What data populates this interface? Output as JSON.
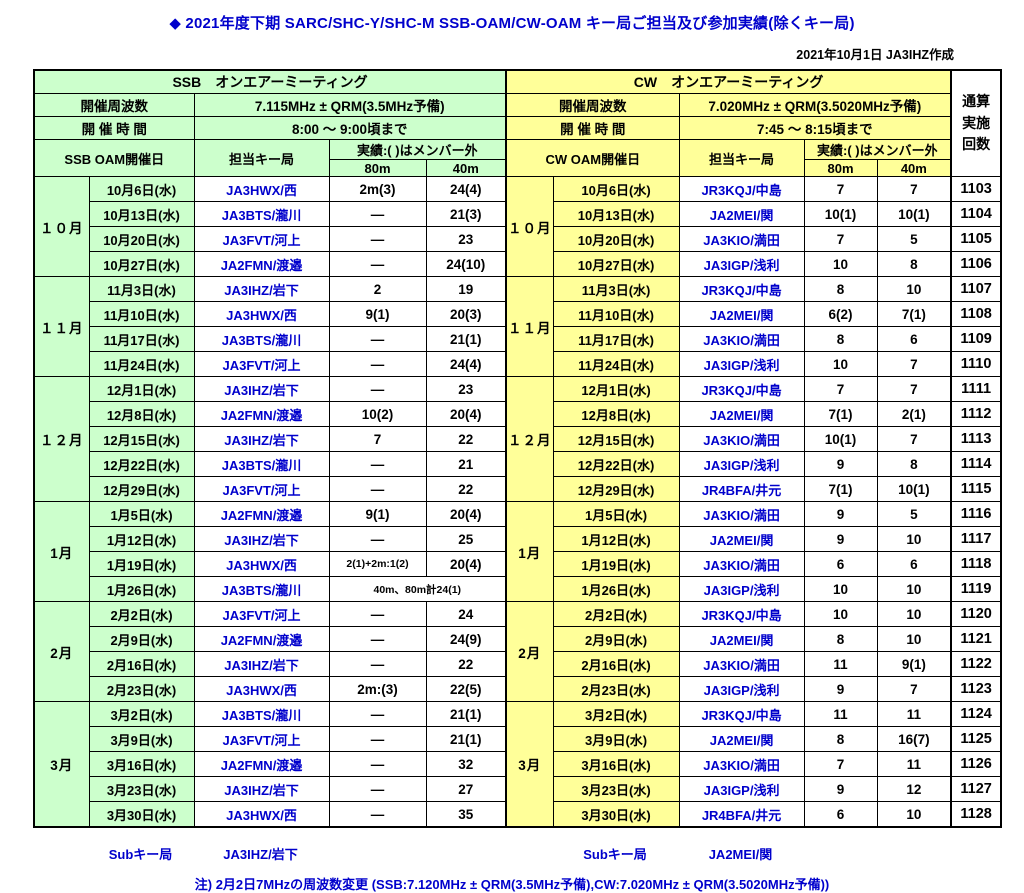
{
  "title": "◆ 2021年度下期 SARC/SHC-Y/SHC-M SSB-OAM/CW-OAM キー局ご担当及び参加実績(除くキー局)",
  "created": "2021年10月1日 JA3IHZ作成",
  "colors": {
    "ssb_bg": "#ccffcc",
    "cw_bg": "#ffff99",
    "accent_blue": "#0000cc"
  },
  "total_col": "通算\n実施\n回数",
  "ssb": {
    "section_title": "SSB　オンエアーミーティング",
    "freq_label": "開催周波数",
    "freq_value": "7.115MHz ± QRM(3.5MHz予備)",
    "time_label": "開 催 時 間",
    "time_value": "8:00 ～ 9:00頃まで",
    "date_col": "SSB OAM開催日",
    "key_col": "担当キー局",
    "result_col": "実績:( )はメンバー外",
    "band_80": "80m",
    "band_40": "40m"
  },
  "cw": {
    "section_title": "CW　オンエアーミーティング",
    "freq_label": "開催周波数",
    "freq_value": "7.020MHz ± QRM(3.5020MHz予備)",
    "time_label": "開 催 時 間",
    "time_value": "7:45 ～ 8:15頃まで",
    "date_col": "CW OAM開催日",
    "key_col": "担当キー局",
    "result_col": "実績:( )はメンバー外",
    "band_80": "80m",
    "band_40": "40m"
  },
  "months": [
    {
      "label": "１０月",
      "span": 4
    },
    {
      "label": "１１月",
      "span": 4
    },
    {
      "label": "１２月",
      "span": 5
    },
    {
      "label": "1月",
      "span": 4
    },
    {
      "label": "2月",
      "span": 4
    },
    {
      "label": "3月",
      "span": 5
    }
  ],
  "rows": [
    {
      "ssb_date": "10月6日(水)",
      "ssb_key": "JA3HWX/西",
      "ssb_80": "2m(3)",
      "ssb_40": "24(4)",
      "cw_date": "10月6日(水)",
      "cw_key": "JR3KQJ/中島",
      "cw_80": "7",
      "cw_40": "7",
      "total": "1103"
    },
    {
      "ssb_date": "10月13日(水)",
      "ssb_key": "JA3BTS/瀧川",
      "ssb_80": "―",
      "ssb_40": "21(3)",
      "cw_date": "10月13日(水)",
      "cw_key": "JA2MEI/関",
      "cw_80": "10(1)",
      "cw_40": "10(1)",
      "total": "1104"
    },
    {
      "ssb_date": "10月20日(水)",
      "ssb_key": "JA3FVT/河上",
      "ssb_80": "―",
      "ssb_40": "23",
      "cw_date": "10月20日(水)",
      "cw_key": "JA3KIO/満田",
      "cw_80": "7",
      "cw_40": "5",
      "total": "1105"
    },
    {
      "ssb_date": "10月27日(水)",
      "ssb_key": "JA2FMN/渡邉",
      "ssb_80": "―",
      "ssb_40": "24(10)",
      "cw_date": "10月27日(水)",
      "cw_key": "JA3IGP/浅利",
      "cw_80": "10",
      "cw_40": "8",
      "total": "1106"
    },
    {
      "ssb_date": "11月3日(水)",
      "ssb_key": "JA3IHZ/岩下",
      "ssb_80": "2",
      "ssb_40": "19",
      "cw_date": "11月3日(水)",
      "cw_key": "JR3KQJ/中島",
      "cw_80": "8",
      "cw_40": "10",
      "total": "1107"
    },
    {
      "ssb_date": "11月10日(水)",
      "ssb_key": "JA3HWX/西",
      "ssb_80": "9(1)",
      "ssb_40": "20(3)",
      "cw_date": "11月10日(水)",
      "cw_key": "JA2MEI/関",
      "cw_80": "6(2)",
      "cw_40": "7(1)",
      "total": "1108"
    },
    {
      "ssb_date": "11月17日(水)",
      "ssb_key": "JA3BTS/瀧川",
      "ssb_80": "―",
      "ssb_40": "21(1)",
      "cw_date": "11月17日(水)",
      "cw_key": "JA3KIO/満田",
      "cw_80": "8",
      "cw_40": "6",
      "total": "1109"
    },
    {
      "ssb_date": "11月24日(水)",
      "ssb_key": "JA3FVT/河上",
      "ssb_80": "―",
      "ssb_40": "24(4)",
      "cw_date": "11月24日(水)",
      "cw_key": "JA3IGP/浅利",
      "cw_80": "10",
      "cw_40": "7",
      "total": "1110"
    },
    {
      "ssb_date": "12月1日(水)",
      "ssb_key": "JA3IHZ/岩下",
      "ssb_80": "―",
      "ssb_40": "23",
      "cw_date": "12月1日(水)",
      "cw_key": "JR3KQJ/中島",
      "cw_80": "7",
      "cw_40": "7",
      "total": "1111"
    },
    {
      "ssb_date": "12月8日(水)",
      "ssb_key": "JA2FMN/渡邉",
      "ssb_80": "10(2)",
      "ssb_40": "20(4)",
      "cw_date": "12月8日(水)",
      "cw_key": "JA2MEI/関",
      "cw_80": "7(1)",
      "cw_40": "2(1)",
      "total": "1112"
    },
    {
      "ssb_date": "12月15日(水)",
      "ssb_key": "JA3IHZ/岩下",
      "ssb_80": "7",
      "ssb_40": "22",
      "cw_date": "12月15日(水)",
      "cw_key": "JA3KIO/満田",
      "cw_80": "10(1)",
      "cw_40": "7",
      "total": "1113"
    },
    {
      "ssb_date": "12月22日(水)",
      "ssb_key": "JA3BTS/瀧川",
      "ssb_80": "―",
      "ssb_40": "21",
      "cw_date": "12月22日(水)",
      "cw_key": "JA3IGP/浅利",
      "cw_80": "9",
      "cw_40": "8",
      "total": "1114"
    },
    {
      "ssb_date": "12月29日(水)",
      "ssb_key": "JA3FVT/河上",
      "ssb_80": "―",
      "ssb_40": "22",
      "cw_date": "12月29日(水)",
      "cw_key": "JR4BFA/井元",
      "cw_80": "7(1)",
      "cw_40": "10(1)",
      "total": "1115"
    },
    {
      "ssb_date": "1月5日(水)",
      "ssb_key": "JA2FMN/渡邉",
      "ssb_80": "9(1)",
      "ssb_40": "20(4)",
      "cw_date": "1月5日(水)",
      "cw_key": "JA3KIO/満田",
      "cw_80": "9",
      "cw_40": "5",
      "total": "1116"
    },
    {
      "ssb_date": "1月12日(水)",
      "ssb_key": "JA3IHZ/岩下",
      "ssb_80": "―",
      "ssb_40": "25",
      "cw_date": "1月12日(水)",
      "cw_key": "JA2MEI/関",
      "cw_80": "9",
      "cw_40": "10",
      "total": "1117"
    },
    {
      "ssb_date": "1月19日(水)",
      "ssb_key": "JA3HWX/西",
      "ssb_80": "2(1)+2m:1(2)",
      "ssb_40": "20(4)",
      "cw_date": "1月19日(水)",
      "cw_key": "JA3KIO/満田",
      "cw_80": "6",
      "cw_40": "6",
      "total": "1118"
    },
    {
      "ssb_date": "1月26日(水)",
      "ssb_key": "JA3BTS/瀧川",
      "ssb_merged": "40m、80m計24(1)",
      "cw_date": "1月26日(水)",
      "cw_key": "JA3IGP/浅利",
      "cw_80": "10",
      "cw_40": "10",
      "total": "1119"
    },
    {
      "ssb_date": "2月2日(水)",
      "ssb_key": "JA3FVT/河上",
      "ssb_80": "―",
      "ssb_40": "24",
      "cw_date": "2月2日(水)",
      "cw_key": "JR3KQJ/中島",
      "cw_80": "10",
      "cw_40": "10",
      "total": "1120"
    },
    {
      "ssb_date": "2月9日(水)",
      "ssb_key": "JA2FMN/渡邉",
      "ssb_80": "―",
      "ssb_40": "24(9)",
      "cw_date": "2月9日(水)",
      "cw_key": "JA2MEI/関",
      "cw_80": "8",
      "cw_40": "10",
      "total": "1121"
    },
    {
      "ssb_date": "2月16日(水)",
      "ssb_key": "JA3IHZ/岩下",
      "ssb_80": "―",
      "ssb_40": "22",
      "cw_date": "2月16日(水)",
      "cw_key": "JA3KIO/満田",
      "cw_80": "11",
      "cw_40": "9(1)",
      "total": "1122"
    },
    {
      "ssb_date": "2月23日(水)",
      "ssb_key": "JA3HWX/西",
      "ssb_80": "2m:(3)",
      "ssb_40": "22(5)",
      "cw_date": "2月23日(水)",
      "cw_key": "JA3IGP/浅利",
      "cw_80": "9",
      "cw_40": "7",
      "total": "1123"
    },
    {
      "ssb_date": "3月2日(水)",
      "ssb_key": "JA3BTS/瀧川",
      "ssb_80": "―",
      "ssb_40": "21(1)",
      "cw_date": "3月2日(水)",
      "cw_key": "JR3KQJ/中島",
      "cw_80": "11",
      "cw_40": "11",
      "total": "1124"
    },
    {
      "ssb_date": "3月9日(水)",
      "ssb_key": "JA3FVT/河上",
      "ssb_80": "―",
      "ssb_40": "21(1)",
      "cw_date": "3月9日(水)",
      "cw_key": "JA2MEI/関",
      "cw_80": "8",
      "cw_40": "16(7)",
      "total": "1125"
    },
    {
      "ssb_date": "3月16日(水)",
      "ssb_key": "JA2FMN/渡邉",
      "ssb_80": "―",
      "ssb_40": "32",
      "cw_date": "3月16日(水)",
      "cw_key": "JA3KIO/満田",
      "cw_80": "7",
      "cw_40": "11",
      "total": "1126"
    },
    {
      "ssb_date": "3月23日(水)",
      "ssb_key": "JA3IHZ/岩下",
      "ssb_80": "―",
      "ssb_40": "27",
      "cw_date": "3月23日(水)",
      "cw_key": "JA3IGP/浅利",
      "cw_80": "9",
      "cw_40": "12",
      "total": "1127"
    },
    {
      "ssb_date": "3月30日(水)",
      "ssb_key": "JA3HWX/西",
      "ssb_80": "―",
      "ssb_40": "35",
      "cw_date": "3月30日(水)",
      "cw_key": "JR4BFA/井元",
      "cw_80": "6",
      "cw_40": "10",
      "total": "1128"
    }
  ],
  "footer": {
    "ssb_sub_label": "Subキー局",
    "ssb_sub_value": "JA3IHZ/岩下",
    "cw_sub_label": "Subキー局",
    "cw_sub_value": "JA2MEI/関",
    "note": "注) 2月2日7MHzの周波数変更 (SSB:7.120MHz ± QRM(3.5MHz予備),CW:7.020MHz ± QRM(3.5020MHz予備))"
  }
}
